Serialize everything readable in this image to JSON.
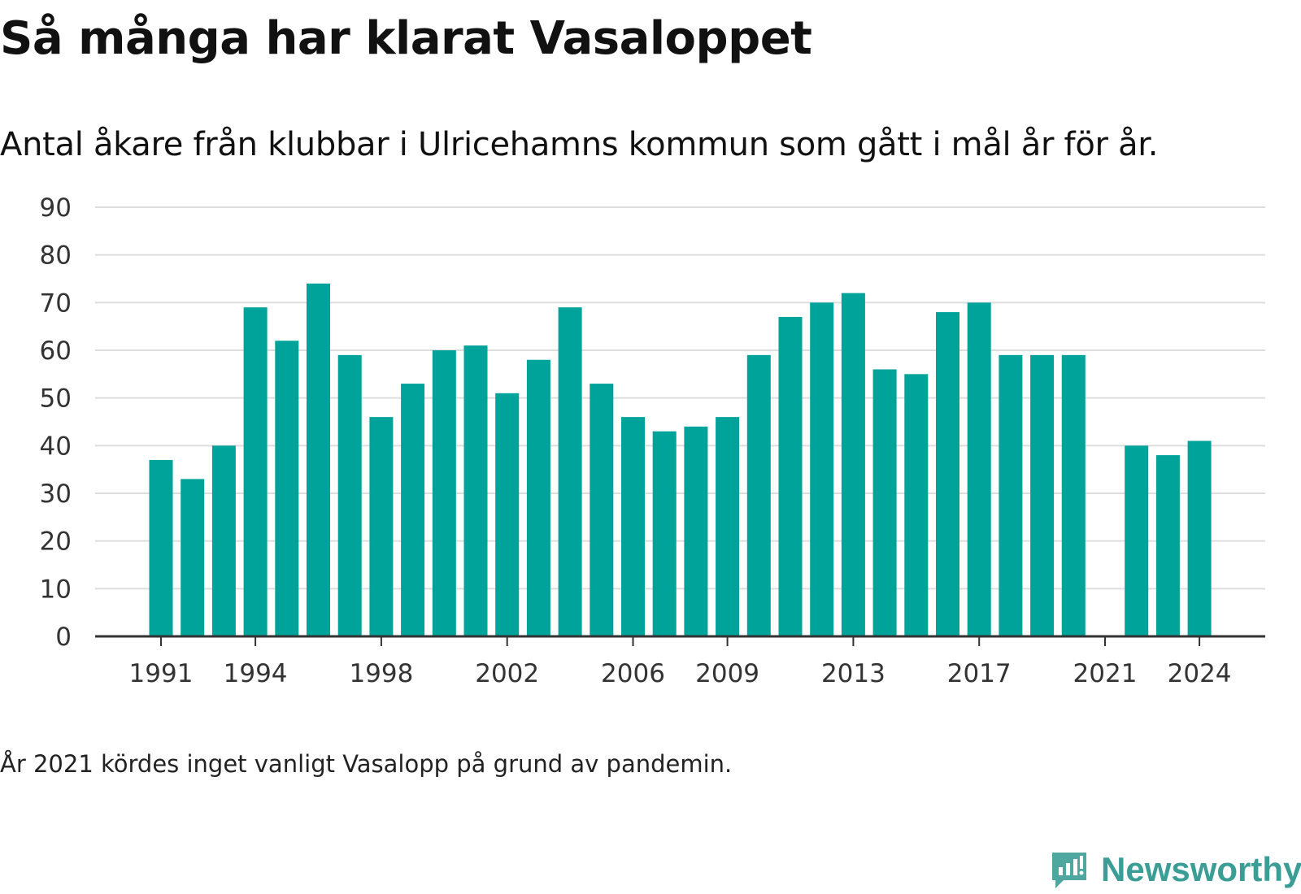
{
  "title": "Så många har klarat Vasaloppet",
  "subtitle": "Antal åkare från klubbar i Ulricehamns kommun som gått i mål år för år.",
  "note": "År 2021 kördes inget vanligt Vasalopp på grund av pandemin.",
  "logo": {
    "text": "Newsworthy",
    "color": "#3a9e96"
  },
  "colors": {
    "bar": "#00a39a",
    "grid": "#dddddd",
    "axis": "#333333"
  },
  "chart_data": {
    "type": "bar",
    "categories": [
      "1991",
      "1992",
      "1993",
      "1994",
      "1995",
      "1996",
      "1997",
      "1998",
      "1999",
      "2000",
      "2001",
      "2002",
      "2003",
      "2004",
      "2005",
      "2006",
      "2007",
      "2008",
      "2009",
      "2010",
      "2011",
      "2012",
      "2013",
      "2014",
      "2015",
      "2016",
      "2017",
      "2018",
      "2019",
      "2020",
      "2021",
      "2022",
      "2023",
      "2024"
    ],
    "values": [
      37,
      33,
      40,
      69,
      62,
      74,
      59,
      46,
      53,
      60,
      61,
      51,
      58,
      69,
      53,
      46,
      43,
      44,
      46,
      59,
      67,
      70,
      72,
      56,
      55,
      68,
      70,
      59,
      59,
      59,
      null,
      40,
      38,
      41
    ],
    "xticks": [
      "1991",
      "1994",
      "1998",
      "2002",
      "2006",
      "2009",
      "2013",
      "2017",
      "2021",
      "2024"
    ],
    "yticks": [
      0,
      10,
      20,
      30,
      40,
      50,
      60,
      70,
      80,
      90
    ],
    "ylim": [
      0,
      90
    ],
    "grid": true
  }
}
